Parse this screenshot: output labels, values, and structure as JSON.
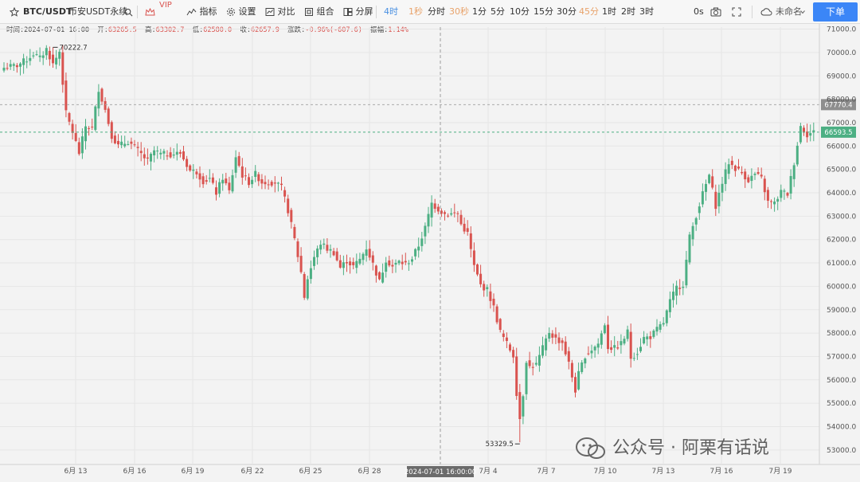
{
  "toolbar": {
    "symbol": "BTC/USDT",
    "exchange": "币安USDT永续",
    "vip_label": "VIP",
    "indicators_label": "指标",
    "settings_label": "设置",
    "compare_label": "对比",
    "combine_label": "组合",
    "split_label": "分屏",
    "intervals": [
      "4时",
      "1秒",
      "分时",
      "30秒",
      "1分",
      "5分",
      "10分",
      "15分",
      "30分",
      "45分",
      "1时",
      "2时",
      "3时"
    ],
    "active_interval": "4时",
    "countdown": "0s",
    "layout_name": "未命名",
    "order_label": "下单"
  },
  "ohlc": {
    "time_label": "时间:",
    "time": "2024-07-01 16:00",
    "open_label": "开:",
    "open": "63265.5",
    "high_label": "高:",
    "high": "63302.7",
    "low_label": "低:",
    "low": "62580.0",
    "close_label": "收:",
    "close": "62657.9",
    "change_label": "涨跌:",
    "change": "-0.96%(-607.6)",
    "amplitude_label": "振幅:",
    "amplitude": "1.14%"
  },
  "chart_data": {
    "type": "candlestick",
    "y_ticks": [
      "71000.0",
      "70000.0",
      "69000.0",
      "68000.0",
      "67000.0",
      "66000.0",
      "65000.0",
      "64000.0",
      "63000.0",
      "62000.0",
      "61000.0",
      "60000.0",
      "59000.0",
      "58000.0",
      "57000.0",
      "56000.0",
      "55000.0",
      "54000.0",
      "53000.0"
    ],
    "x_ticks": [
      "6月 13",
      "6月 16",
      "6月 19",
      "6月 22",
      "6月 25",
      "6月 28",
      "2024-07-01 16:00:00",
      "7月 4",
      "7月 7",
      "7月 10",
      "7月 13",
      "7月 16",
      "7月 19"
    ],
    "crosshair_label": "2024-07-01 16:00:00",
    "price_line_gray": {
      "value": 67770.4,
      "label": "67770.4"
    },
    "price_line_last": {
      "value": 66593.5,
      "label": "66593.5"
    },
    "annotation_high": {
      "value": 70222.7,
      "label": "70222.7"
    },
    "annotation_low": {
      "value": 53329.5,
      "label": "53329.5"
    },
    "colors": {
      "up": "#4caf83",
      "down": "#d9534f",
      "last_price": "#4caf83",
      "crosshair": "#9e9e9e"
    },
    "close_path": [
      [
        0,
        69350
      ],
      [
        4,
        69450
      ],
      [
        7,
        69700
      ],
      [
        9,
        69950
      ],
      [
        11,
        69750
      ],
      [
        13,
        70150
      ],
      [
        15,
        69500
      ],
      [
        17,
        70050
      ],
      [
        19,
        67400
      ],
      [
        21,
        66600
      ],
      [
        23,
        65700
      ],
      [
        25,
        66850
      ],
      [
        27,
        66750
      ],
      [
        29,
        68450
      ],
      [
        31,
        67550
      ],
      [
        33,
        66450
      ],
      [
        35,
        66000
      ],
      [
        38,
        66200
      ],
      [
        41,
        65800
      ],
      [
        44,
        65350
      ],
      [
        46,
        65800
      ],
      [
        48,
        65650
      ],
      [
        51,
        65650
      ],
      [
        54,
        65700
      ],
      [
        57,
        64950
      ],
      [
        59,
        64900
      ],
      [
        61,
        64500
      ],
      [
        63,
        64600
      ],
      [
        65,
        64000
      ],
      [
        67,
        64650
      ],
      [
        69,
        64050
      ],
      [
        71,
        65550
      ],
      [
        73,
        64750
      ],
      [
        75,
        64450
      ],
      [
        77,
        64800
      ],
      [
        79,
        64450
      ],
      [
        81,
        64450
      ],
      [
        83,
        64450
      ],
      [
        85,
        64200
      ],
      [
        87,
        63250
      ],
      [
        89,
        62000
      ],
      [
        91,
        60600
      ],
      [
        92,
        59550
      ],
      [
        93,
        60350
      ],
      [
        95,
        61250
      ],
      [
        97,
        61850
      ],
      [
        99,
        61600
      ],
      [
        101,
        61450
      ],
      [
        103,
        60800
      ],
      [
        105,
        61100
      ],
      [
        107,
        60850
      ],
      [
        109,
        61150
      ],
      [
        111,
        61650
      ],
      [
        113,
        60950
      ],
      [
        115,
        60200
      ],
      [
        117,
        61150
      ],
      [
        119,
        60850
      ],
      [
        121,
        61050
      ],
      [
        123,
        60950
      ],
      [
        125,
        61200
      ],
      [
        127,
        61750
      ],
      [
        129,
        62500
      ],
      [
        131,
        63550
      ],
      [
        133,
        63300
      ],
      [
        135,
        63100
      ],
      [
        137,
        63100
      ],
      [
        139,
        63100
      ],
      [
        140,
        62650
      ],
      [
        142,
        62250
      ],
      [
        144,
        60850
      ],
      [
        146,
        60050
      ],
      [
        148,
        59850
      ],
      [
        150,
        59100
      ],
      [
        152,
        58050
      ],
      [
        154,
        57550
      ],
      [
        156,
        57050
      ],
      [
        157,
        55450
      ],
      [
        158,
        54350
      ],
      [
        159,
        55400
      ],
      [
        160,
        56850
      ],
      [
        161,
        56550
      ],
      [
        163,
        56650
      ],
      [
        165,
        57350
      ],
      [
        167,
        58050
      ],
      [
        169,
        57750
      ],
      [
        171,
        57600
      ],
      [
        173,
        56700
      ],
      [
        175,
        55550
      ],
      [
        176,
        56250
      ],
      [
        178,
        57050
      ],
      [
        180,
        57300
      ],
      [
        182,
        57550
      ],
      [
        184,
        58400
      ],
      [
        185,
        57400
      ],
      [
        187,
        57350
      ],
      [
        189,
        57550
      ],
      [
        191,
        58050
      ],
      [
        192,
        56950
      ],
      [
        194,
        57200
      ],
      [
        196,
        57800
      ],
      [
        198,
        57850
      ],
      [
        200,
        58150
      ],
      [
        202,
        58450
      ],
      [
        204,
        59350
      ],
      [
        206,
        59950
      ],
      [
        208,
        60100
      ],
      [
        210,
        62100
      ],
      [
        212,
        63050
      ],
      [
        214,
        63950
      ],
      [
        216,
        64750
      ],
      [
        218,
        63450
      ],
      [
        220,
        64450
      ],
      [
        222,
        65300
      ],
      [
        224,
        65050
      ],
      [
        226,
        64850
      ],
      [
        228,
        64550
      ],
      [
        230,
        64800
      ],
      [
        232,
        64600
      ],
      [
        234,
        63600
      ],
      [
        236,
        63550
      ],
      [
        238,
        64050
      ],
      [
        240,
        63950
      ],
      [
        242,
        65300
      ],
      [
        244,
        66850
      ],
      [
        246,
        66500
      ],
      [
        248,
        66600
      ]
    ]
  },
  "watermark": {
    "text": "公众号 · 阿栗有话说"
  }
}
